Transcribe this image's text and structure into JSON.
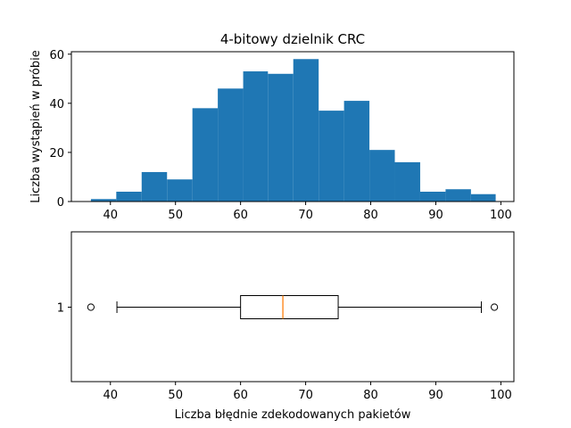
{
  "chart_data": [
    {
      "type": "histogram",
      "title": "4-bitowy dzielnik CRC",
      "xlabel": "",
      "ylabel": "Liczba wystąpień w próbie",
      "xlim": [
        34,
        102
      ],
      "ylim": [
        0,
        61
      ],
      "bar_color": "#1f77b4",
      "bins": [
        {
          "x0": 37.0,
          "x1": 40.9,
          "count": 1
        },
        {
          "x0": 40.9,
          "x1": 44.8,
          "count": 4
        },
        {
          "x0": 44.8,
          "x1": 48.7,
          "count": 12
        },
        {
          "x0": 48.7,
          "x1": 52.6,
          "count": 9
        },
        {
          "x0": 52.6,
          "x1": 56.5,
          "count": 38
        },
        {
          "x0": 56.5,
          "x1": 60.4,
          "count": 46
        },
        {
          "x0": 60.4,
          "x1": 64.2,
          "count": 53
        },
        {
          "x0": 64.2,
          "x1": 68.1,
          "count": 52
        },
        {
          "x0": 68.1,
          "x1": 72.0,
          "count": 58
        },
        {
          "x0": 72.0,
          "x1": 75.9,
          "count": 37
        },
        {
          "x0": 75.9,
          "x1": 79.8,
          "count": 41
        },
        {
          "x0": 79.8,
          "x1": 83.7,
          "count": 21
        },
        {
          "x0": 83.7,
          "x1": 87.6,
          "count": 16
        },
        {
          "x0": 87.6,
          "x1": 91.5,
          "count": 4
        },
        {
          "x0": 91.5,
          "x1": 95.4,
          "count": 5
        },
        {
          "x0": 95.4,
          "x1": 99.2,
          "count": 3
        }
      ],
      "xticks": [
        40,
        50,
        60,
        70,
        80,
        90,
        100
      ],
      "yticks": [
        0,
        20,
        40,
        60
      ],
      "grid": false,
      "legend": "none"
    },
    {
      "type": "boxplot",
      "title": "",
      "xlabel": "Liczba błędnie zdekodowanych pakietów",
      "ylabel": "",
      "xlim": [
        34,
        102
      ],
      "category_label": "1",
      "box": {
        "whisker_low": 41,
        "q1": 60,
        "median": 66.5,
        "q3": 75,
        "whisker_high": 97
      },
      "outliers": [
        37,
        99
      ],
      "median_color": "#ff7f0e",
      "xticks": [
        40,
        50,
        60,
        70,
        80,
        90,
        100
      ],
      "grid": false,
      "legend": "none"
    }
  ]
}
